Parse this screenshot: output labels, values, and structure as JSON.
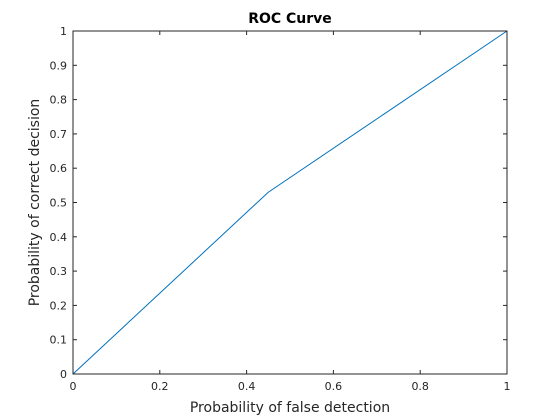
{
  "chart_data": {
    "type": "line",
    "title": "ROC Curve",
    "xlabel": "Probability of false detection",
    "ylabel": "Probability of correct decision",
    "xlim": [
      0,
      1
    ],
    "ylim": [
      0,
      1
    ],
    "xticks": [
      "0",
      "0.2",
      "0.4",
      "0.6",
      "0.8",
      "1"
    ],
    "yticks": [
      "0",
      "0.1",
      "0.2",
      "0.3",
      "0.4",
      "0.5",
      "0.6",
      "0.7",
      "0.8",
      "0.9",
      "1"
    ],
    "grid": false,
    "box": true,
    "series": [
      {
        "color": "#0072bd",
        "x": [
          0,
          0.45,
          1
        ],
        "y": [
          0,
          0.53,
          1
        ]
      }
    ]
  }
}
